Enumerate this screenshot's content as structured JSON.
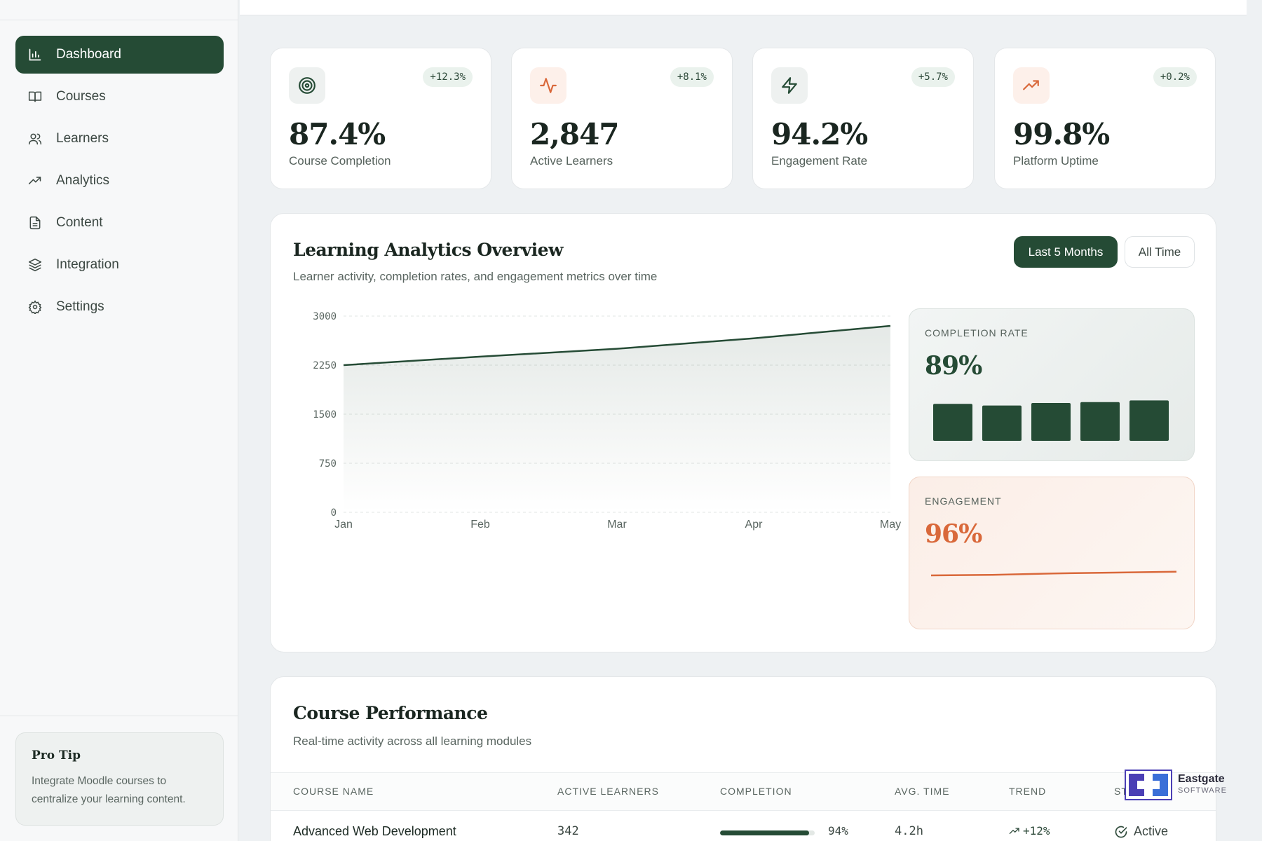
{
  "sidebar": {
    "nav": [
      {
        "label": "Dashboard",
        "icon": "bar-chart-icon",
        "active": true
      },
      {
        "label": "Courses",
        "icon": "book-icon"
      },
      {
        "label": "Learners",
        "icon": "users-icon"
      },
      {
        "label": "Analytics",
        "icon": "trending-up-icon"
      },
      {
        "label": "Content",
        "icon": "document-icon"
      },
      {
        "label": "Integration",
        "icon": "layers-icon"
      },
      {
        "label": "Settings",
        "icon": "gear-icon"
      }
    ],
    "protip": {
      "title": "Pro Tip",
      "text": "Integrate Moodle courses to centralize your learning content."
    }
  },
  "kpis": [
    {
      "value": "87.4%",
      "label": "Course Completion",
      "delta": "+12.3%",
      "icon": "target-icon"
    },
    {
      "value": "2,847",
      "label": "Active Learners",
      "delta": "+8.1%",
      "icon": "activity-icon"
    },
    {
      "value": "94.2%",
      "label": "Engagement Rate",
      "delta": "+5.7%",
      "icon": "lightning-icon"
    },
    {
      "value": "99.8%",
      "label": "Platform Uptime",
      "delta": "+0.2%",
      "icon": "trending-up-icon"
    }
  ],
  "analytics": {
    "title": "Learning Analytics Overview",
    "subtitle": "Learner activity, completion rates, and engagement metrics over time",
    "range_active": "Last 5 Months",
    "range_alt": "All Time",
    "completion_label": "COMPLETION RATE",
    "completion_value": "89%",
    "engagement_label": "ENGAGEMENT",
    "engagement_value": "96%"
  },
  "chart_data": {
    "type": "area",
    "x": [
      "Jan",
      "Feb",
      "Mar",
      "Apr",
      "May"
    ],
    "series": [
      {
        "values": [
          2250,
          2380,
          2500,
          2660,
          2850
        ]
      }
    ],
    "yticks": [
      0,
      750,
      1500,
      2250,
      3000
    ],
    "ylim": [
      0,
      3000
    ],
    "grid": true,
    "mini_bars": [
      0.88,
      0.84,
      0.9,
      0.92,
      0.96
    ],
    "mini_line": [
      0.45,
      0.47,
      0.52,
      0.55,
      0.58
    ]
  },
  "performance": {
    "title": "Course Performance",
    "subtitle": "Real-time activity across all learning modules",
    "columns": [
      "COURSE NAME",
      "ACTIVE LEARNERS",
      "COMPLETION",
      "AVG. TIME",
      "TREND",
      "ST"
    ],
    "rows": [
      {
        "name": "Advanced Web Development",
        "learners": "342",
        "completion": "94%",
        "completion_frac": 0.94,
        "avg_time": "4.2h",
        "trend": "+12%",
        "status": "Active"
      }
    ]
  },
  "logo": {
    "name": "Eastgate",
    "sub": "SOFTWARE"
  },
  "colors": {
    "brand": "#254b35",
    "accent": "#d9683a",
    "bg": "#eef1f3"
  }
}
